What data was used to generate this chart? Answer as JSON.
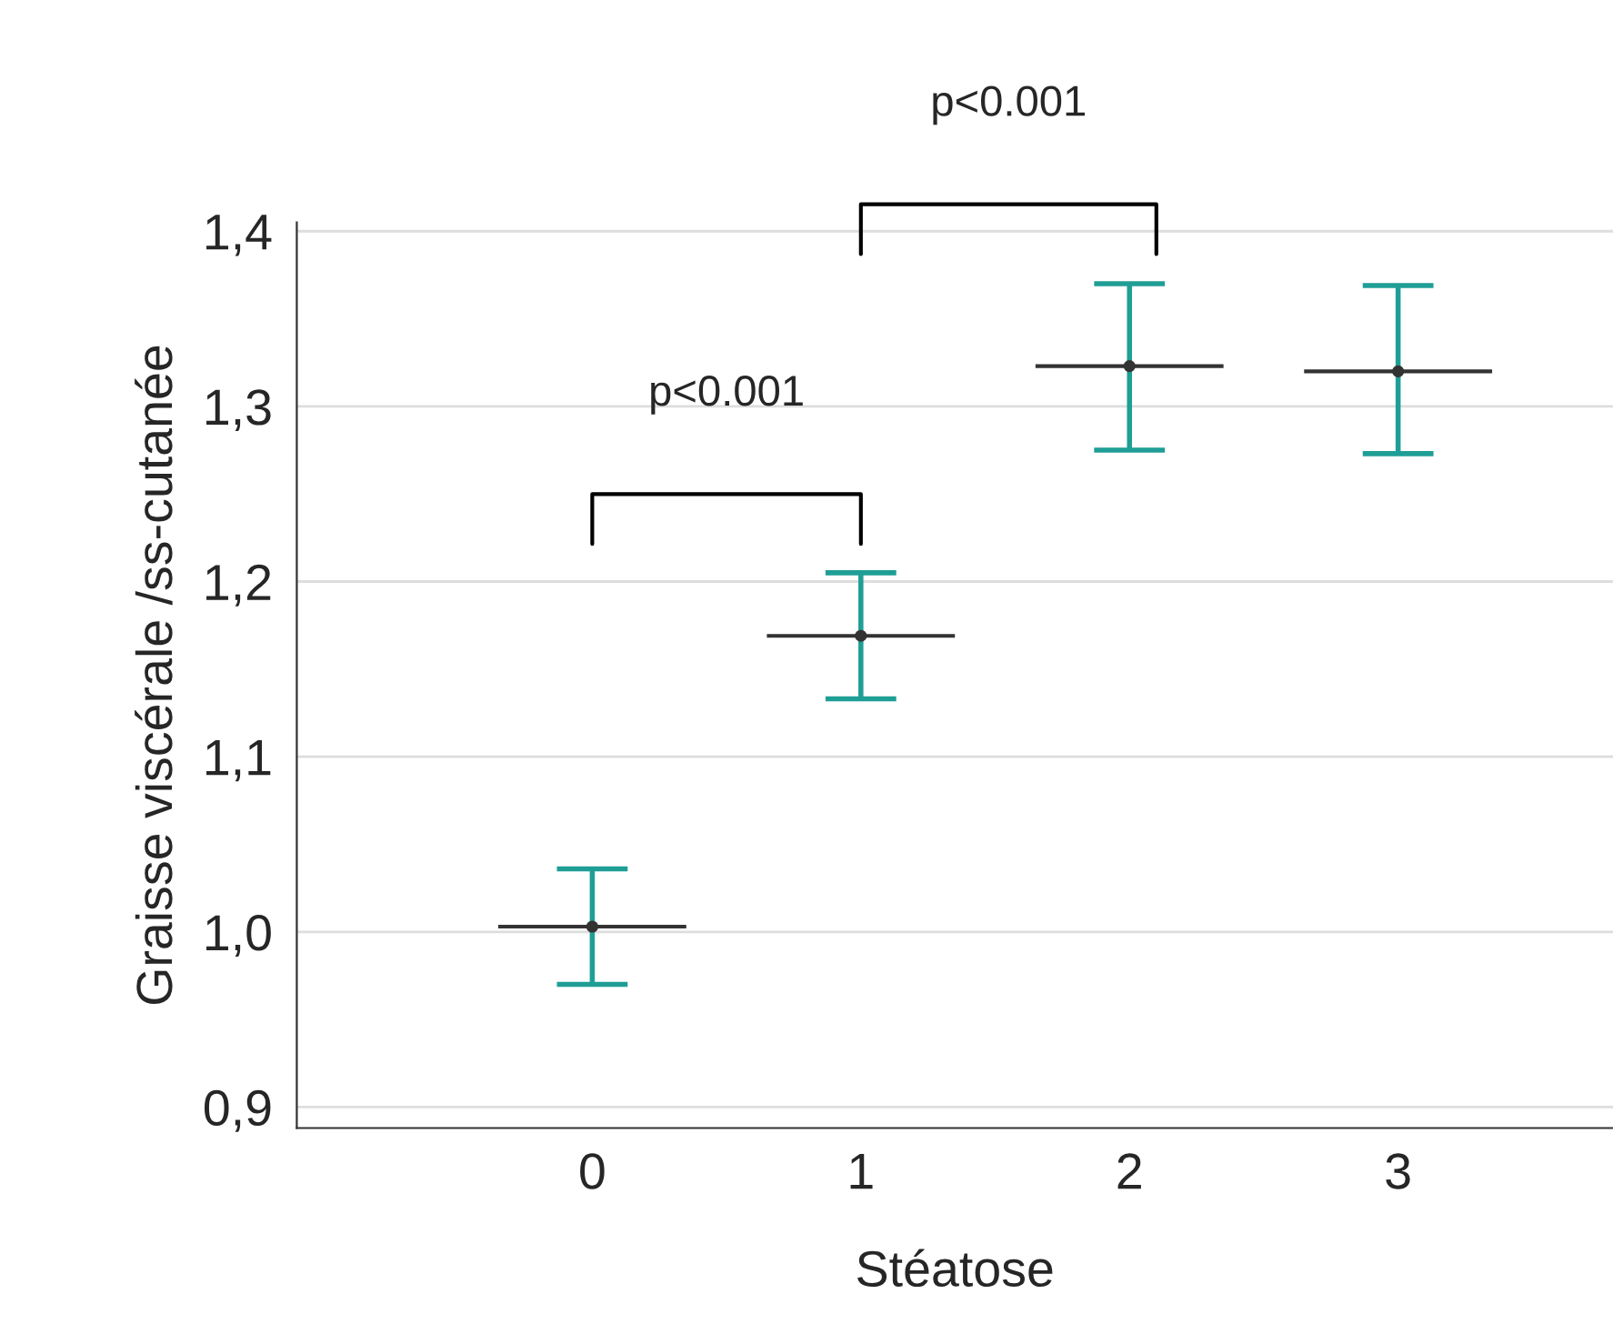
{
  "chart_data": {
    "type": "scatter",
    "xlabel": "Stéatose",
    "ylabel": "Graisse viscérale /ss-cutanée",
    "x": [
      0,
      1,
      2,
      3
    ],
    "series": [
      {
        "color": "#333333",
        "values": [
          1.003,
          1.169,
          1.323,
          1.32
        ],
        "errors": [
          [
            0.97,
            1.036
          ],
          [
            1.133,
            1.205
          ],
          [
            1.275,
            1.37
          ],
          [
            1.273,
            1.369
          ]
        ],
        "xerrors": [
          0.35,
          0.35,
          0.35,
          0.35
        ]
      }
    ],
    "xlim": [
      -1.1,
      3.8
    ],
    "xticks": [
      0,
      1,
      2,
      3
    ],
    "ylim": [
      0.888,
      1.405
    ],
    "yticks": [
      {
        "value": 0.9,
        "label": "0,9"
      },
      {
        "value": 1.0,
        "label": "1,0"
      },
      {
        "value": 1.1,
        "label": "1,1"
      },
      {
        "value": 1.2,
        "label": "1,2"
      },
      {
        "value": 1.3,
        "label": "1,3"
      },
      {
        "value": 1.4,
        "label": "1,4"
      }
    ],
    "grid": "y",
    "marker": "circle",
    "annotations": [
      "p<0.001",
      "p<0.001"
    ]
  }
}
